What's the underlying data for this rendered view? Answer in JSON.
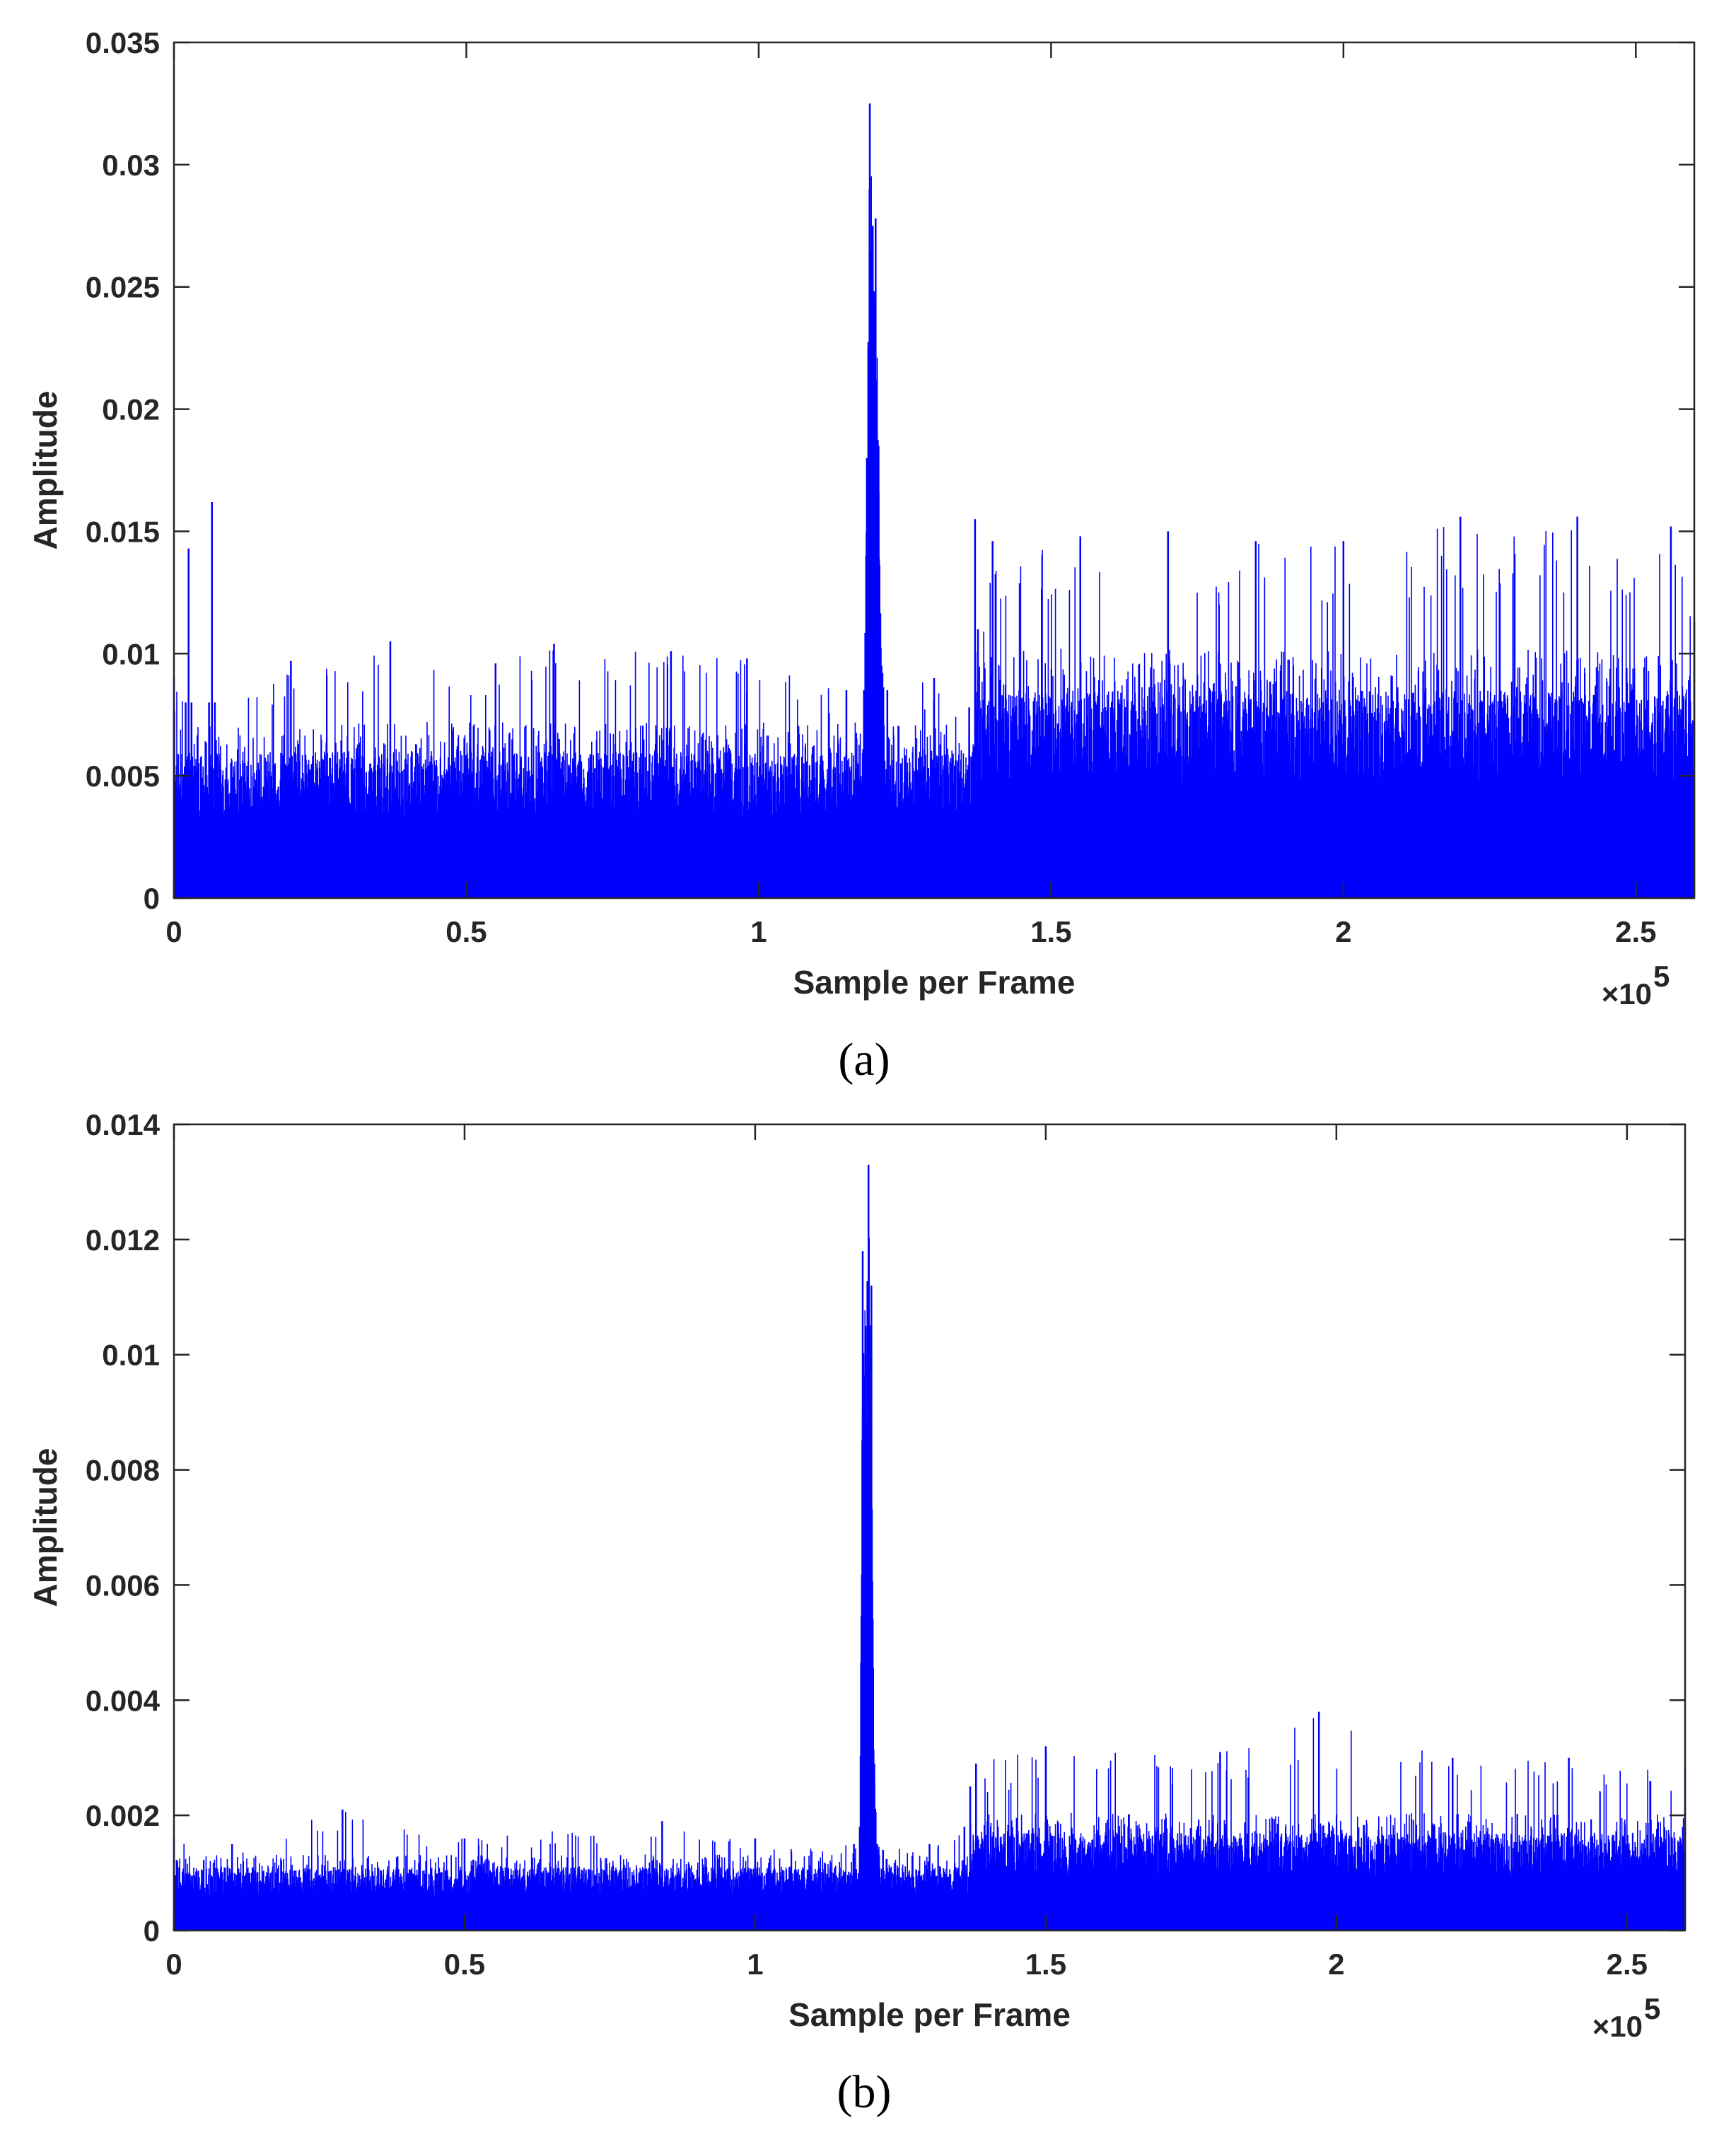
{
  "colors": {
    "series": "#0000ff",
    "axes": "#262626",
    "background": "#ffffff"
  },
  "chart_data": [
    {
      "type": "line",
      "panel_label": "(a)",
      "title": "",
      "xlabel": "Sample per Frame",
      "ylabel": "Amplitude",
      "x_exponent_label": "×10",
      "x_exponent_power": "5",
      "xlim": [
        0,
        2.6
      ],
      "ylim": [
        0,
        0.035
      ],
      "x_ticks": [
        0,
        0.5,
        1,
        1.5,
        2,
        2.5
      ],
      "x_tick_labels": [
        "0",
        "0.5",
        "1",
        "1.5",
        "2",
        "2.5"
      ],
      "y_ticks": [
        0,
        0.005,
        0.01,
        0.015,
        0.02,
        0.025,
        0.03,
        0.035
      ],
      "y_tick_labels": [
        "0",
        "0.005",
        "0.01",
        "0.015",
        "0.02",
        "0.025",
        "0.03",
        "0.035"
      ],
      "grid": false,
      "series": [
        {
          "x": [
            0,
            0.02,
            0.025,
            0.03,
            0.06,
            0.065,
            0.07,
            0.2,
            0.37,
            0.55,
            0.65,
            0.85,
            0.98,
            1.15,
            1.18,
            1.185,
            1.19,
            1.195,
            1.2,
            1.205,
            1.21,
            1.22,
            1.3,
            1.36,
            1.37,
            1.375,
            1.4,
            1.55,
            1.7,
            1.85,
            2.0,
            2.2,
            2.4,
            2.56,
            2.6
          ],
          "y_envelope": [
            0.009,
            0.008,
            0.0143,
            0.008,
            0.008,
            0.0162,
            0.008,
            0.0097,
            0.0105,
            0.0096,
            0.0104,
            0.0101,
            0.0098,
            0.0085,
            0.0085,
            0.018,
            0.0325,
            0.0275,
            0.0278,
            0.0185,
            0.0095,
            0.0085,
            0.009,
            0.0078,
            0.0155,
            0.011,
            0.0146,
            0.0148,
            0.015,
            0.0146,
            0.0146,
            0.0156,
            0.0156,
            0.0152,
            0.0113
          ],
          "typical_floor": 0.006,
          "typical_floor_after_1.37": 0.0085
        }
      ]
    },
    {
      "type": "line",
      "panel_label": "(b)",
      "title": "",
      "xlabel": "Sample per Frame",
      "ylabel": "Amplitude",
      "x_exponent_label": "×10",
      "x_exponent_power": "5",
      "xlim": [
        0,
        2.6
      ],
      "ylim": [
        0,
        0.014
      ],
      "x_ticks": [
        0,
        0.5,
        1,
        1.5,
        2,
        2.5
      ],
      "x_tick_labels": [
        "0",
        "0.5",
        "1",
        "1.5",
        "2",
        "2.5"
      ],
      "y_ticks": [
        0,
        0.002,
        0.004,
        0.006,
        0.008,
        0.01,
        0.012,
        0.014
      ],
      "y_tick_labels": [
        "0",
        "0.002",
        "0.004",
        "0.006",
        "0.008",
        "0.01",
        "0.012",
        "0.014"
      ],
      "grid": false,
      "series": [
        {
          "x": [
            0,
            0.1,
            0.29,
            0.5,
            0.84,
            1.0,
            1.17,
            1.18,
            1.185,
            1.19,
            1.195,
            1.2,
            1.205,
            1.21,
            1.22,
            1.3,
            1.36,
            1.37,
            1.38,
            1.5,
            1.8,
            1.97,
            2.2,
            2.4,
            2.6
          ],
          "y_envelope": [
            0.0016,
            0.0015,
            0.0021,
            0.0016,
            0.0019,
            0.0016,
            0.0015,
            0.0018,
            0.0118,
            0.0105,
            0.0133,
            0.0112,
            0.0029,
            0.0015,
            0.0014,
            0.0015,
            0.0018,
            0.0025,
            0.0029,
            0.0032,
            0.0031,
            0.0038,
            0.003,
            0.003,
            0.0028
          ],
          "typical_floor": 0.0011,
          "typical_floor_after_1.37": 0.0017
        }
      ]
    }
  ]
}
